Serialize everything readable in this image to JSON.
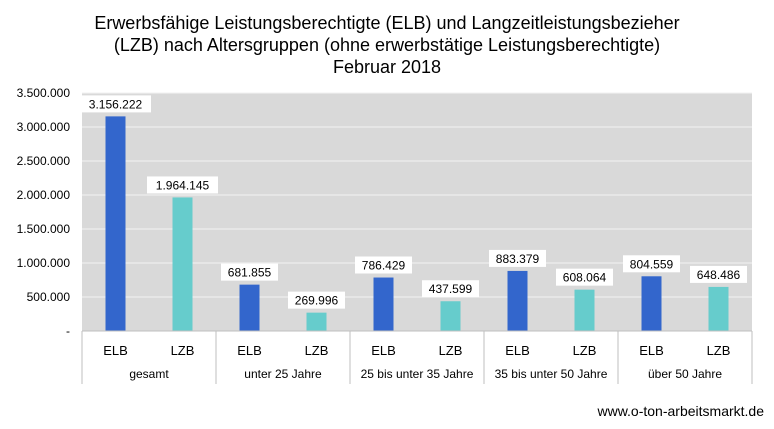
{
  "chart_data": {
    "type": "bar",
    "title_lines": [
      "Erwerbsfähige Leistungsberechtigte (ELB) und Langzeitleistungsbezieher",
      "(LZB) nach Altersgruppen (ohne erwerbstätige Leistungsberechtigte)",
      "Februar 2018"
    ],
    "groups": [
      "gesamt",
      "unter 25 Jahre",
      "25  bis unter 35 Jahre",
      "35  bis unter 50 Jahre",
      "über 50 Jahre"
    ],
    "categories": [
      "ELB",
      "LZB"
    ],
    "values": [
      [
        3156222,
        1964145
      ],
      [
        681855,
        269996
      ],
      [
        786429,
        437599
      ],
      [
        883379,
        608064
      ],
      [
        804559,
        648486
      ]
    ],
    "value_labels": [
      [
        "3.156.222",
        "1.964.145"
      ],
      [
        "681.855",
        "269.996"
      ],
      [
        "786.429",
        "437.599"
      ],
      [
        "883.379",
        "608.064"
      ],
      [
        "804.559",
        "648.486"
      ]
    ],
    "ylim": [
      0,
      3500000
    ],
    "yticks": [
      0,
      500000,
      1000000,
      1500000,
      2000000,
      2500000,
      3000000,
      3500000
    ],
    "ytick_labels": [
      "-",
      "500.000",
      "1.000.000",
      "1.500.000",
      "2.000.000",
      "2.500.000",
      "3.000.000",
      "3.500.000"
    ],
    "grid": true,
    "colors": {
      "ELB": "#3366cc",
      "LZB": "#66cccc",
      "plot_bg": "#d9d9d9",
      "grid": "#f2f2f2"
    }
  },
  "credit": "www.o-ton-arbeitsmarkt.de"
}
